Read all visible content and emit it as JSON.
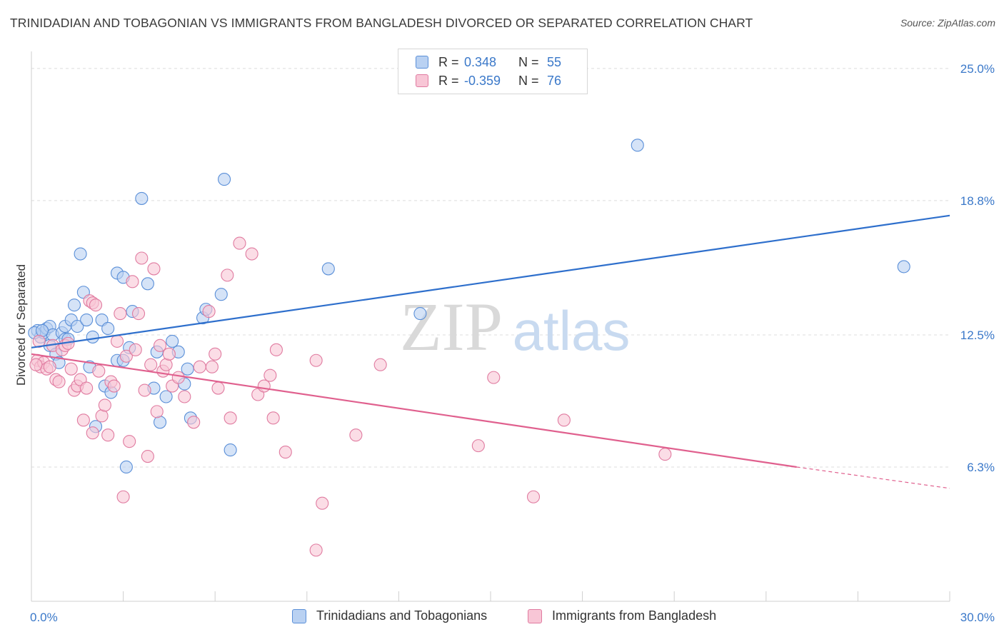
{
  "header": {
    "title": "TRINIDADIAN AND TOBAGONIAN VS IMMIGRANTS FROM BANGLADESH DIVORCED OR SEPARATED CORRELATION CHART",
    "source": "Source: ZipAtlas.com"
  },
  "watermark": {
    "zip": "ZIP",
    "atlas": "atlas"
  },
  "legend": {
    "rows": [
      {
        "r_label": "R =",
        "r_value": "0.348",
        "n_label": "N =",
        "n_value": "55",
        "color": "#5a8fd8",
        "fill": "#b9d1f2"
      },
      {
        "r_label": "R =",
        "r_value": "-0.359",
        "n_label": "N =",
        "n_value": "76",
        "color": "#e07ba0",
        "fill": "#f8c6d6"
      }
    ]
  },
  "bottom_legend": {
    "items": [
      {
        "label": "Trinidadians and Tobagonians",
        "color": "#5a8fd8",
        "fill": "#b9d1f2"
      },
      {
        "label": "Immigrants from Bangladesh",
        "color": "#e07ba0",
        "fill": "#f8c6d6"
      }
    ]
  },
  "chart_data": {
    "type": "scatter",
    "title": "TRINIDADIAN AND TOBAGONIAN VS IMMIGRANTS FROM BANGLADESH DIVORCED OR SEPARATED CORRELATION CHART",
    "xlabel": "",
    "ylabel": "Divorced or Separated",
    "xlim": [
      0,
      30
    ],
    "ylim": [
      0,
      25.8
    ],
    "x_ticks": [
      {
        "value": 0,
        "label": "0.0%"
      },
      {
        "value": 30,
        "label": "30.0%"
      }
    ],
    "y_ticks": [
      {
        "value": 6.3,
        "label": "6.3%"
      },
      {
        "value": 12.5,
        "label": "12.5%"
      },
      {
        "value": 18.8,
        "label": "18.8%"
      },
      {
        "value": 25.0,
        "label": "25.0%"
      }
    ],
    "grid": true,
    "legend_position": "top-center",
    "series": [
      {
        "name": "Trinidadians and Tobagonians",
        "color": "#5a8fd8",
        "fill": "#b9d1f2",
        "points": [
          [
            0.2,
            12.7
          ],
          [
            0.3,
            12.4
          ],
          [
            0.4,
            12.6
          ],
          [
            0.5,
            12.8
          ],
          [
            0.6,
            12.9
          ],
          [
            0.6,
            12.0
          ],
          [
            0.7,
            12.5
          ],
          [
            0.8,
            11.6
          ],
          [
            0.9,
            11.2
          ],
          [
            1.0,
            12.6
          ],
          [
            1.1,
            12.3
          ],
          [
            1.1,
            12.9
          ],
          [
            1.2,
            12.3
          ],
          [
            1.3,
            13.2
          ],
          [
            1.4,
            13.9
          ],
          [
            1.5,
            12.9
          ],
          [
            1.6,
            16.3
          ],
          [
            1.7,
            14.5
          ],
          [
            1.8,
            13.2
          ],
          [
            1.9,
            11.0
          ],
          [
            2.0,
            12.4
          ],
          [
            2.1,
            8.2
          ],
          [
            2.3,
            13.2
          ],
          [
            2.4,
            10.1
          ],
          [
            2.5,
            12.8
          ],
          [
            2.6,
            9.8
          ],
          [
            2.8,
            15.4
          ],
          [
            2.8,
            11.3
          ],
          [
            3.0,
            11.3
          ],
          [
            3.0,
            15.2
          ],
          [
            3.1,
            6.3
          ],
          [
            3.2,
            11.9
          ],
          [
            3.3,
            13.6
          ],
          [
            3.6,
            18.9
          ],
          [
            3.8,
            14.9
          ],
          [
            4.0,
            10.0
          ],
          [
            4.1,
            11.7
          ],
          [
            4.2,
            8.4
          ],
          [
            4.4,
            9.6
          ],
          [
            4.6,
            12.2
          ],
          [
            4.8,
            11.7
          ],
          [
            5.0,
            10.2
          ],
          [
            5.1,
            10.9
          ],
          [
            5.2,
            8.6
          ],
          [
            5.6,
            13.3
          ],
          [
            5.7,
            13.7
          ],
          [
            6.2,
            14.4
          ],
          [
            6.3,
            19.8
          ],
          [
            6.5,
            7.1
          ],
          [
            9.7,
            15.6
          ],
          [
            12.7,
            13.5
          ],
          [
            19.8,
            21.4
          ],
          [
            28.5,
            15.7
          ],
          [
            0.1,
            12.6
          ],
          [
            0.35,
            12.7
          ]
        ]
      },
      {
        "name": "Immigrants from Bangladesh",
        "color": "#e07ba0",
        "fill": "#f8c6d6",
        "points": [
          [
            0.2,
            11.3
          ],
          [
            0.3,
            11.0
          ],
          [
            0.4,
            11.2
          ],
          [
            0.5,
            10.9
          ],
          [
            0.6,
            11.0
          ],
          [
            0.7,
            12.0
          ],
          [
            0.8,
            10.4
          ],
          [
            0.9,
            10.3
          ],
          [
            1.0,
            11.8
          ],
          [
            1.1,
            12.0
          ],
          [
            1.2,
            12.1
          ],
          [
            1.3,
            10.9
          ],
          [
            1.4,
            9.9
          ],
          [
            1.5,
            10.1
          ],
          [
            1.6,
            10.4
          ],
          [
            1.7,
            8.5
          ],
          [
            1.8,
            10.0
          ],
          [
            1.9,
            14.1
          ],
          [
            2.0,
            14.0
          ],
          [
            2.1,
            13.9
          ],
          [
            2.2,
            10.8
          ],
          [
            2.3,
            8.7
          ],
          [
            2.4,
            9.2
          ],
          [
            2.5,
            7.8
          ],
          [
            2.6,
            10.3
          ],
          [
            2.7,
            10.1
          ],
          [
            2.8,
            12.2
          ],
          [
            2.9,
            13.5
          ],
          [
            3.0,
            4.9
          ],
          [
            3.1,
            11.5
          ],
          [
            3.2,
            7.5
          ],
          [
            3.3,
            15.0
          ],
          [
            3.4,
            11.8
          ],
          [
            3.5,
            13.5
          ],
          [
            3.6,
            16.1
          ],
          [
            3.7,
            9.9
          ],
          [
            3.8,
            6.8
          ],
          [
            3.9,
            11.1
          ],
          [
            4.0,
            15.6
          ],
          [
            4.1,
            8.9
          ],
          [
            4.2,
            12.0
          ],
          [
            4.3,
            10.8
          ],
          [
            4.4,
            11.1
          ],
          [
            4.5,
            11.6
          ],
          [
            4.6,
            10.1
          ],
          [
            4.8,
            10.5
          ],
          [
            5.0,
            9.6
          ],
          [
            5.3,
            8.4
          ],
          [
            5.5,
            11.0
          ],
          [
            5.8,
            13.6
          ],
          [
            5.9,
            11.0
          ],
          [
            6.0,
            11.6
          ],
          [
            6.1,
            10.0
          ],
          [
            6.4,
            15.3
          ],
          [
            6.5,
            8.6
          ],
          [
            6.8,
            16.8
          ],
          [
            7.2,
            16.3
          ],
          [
            7.4,
            9.7
          ],
          [
            7.6,
            10.1
          ],
          [
            7.8,
            10.6
          ],
          [
            7.9,
            8.6
          ],
          [
            8.0,
            11.8
          ],
          [
            8.3,
            7.0
          ],
          [
            9.3,
            11.3
          ],
          [
            9.5,
            4.6
          ],
          [
            9.3,
            2.4
          ],
          [
            10.6,
            7.8
          ],
          [
            11.4,
            11.1
          ],
          [
            14.6,
            7.3
          ],
          [
            15.1,
            10.5
          ],
          [
            16.4,
            4.9
          ],
          [
            17.4,
            8.5
          ],
          [
            20.7,
            6.9
          ],
          [
            0.15,
            11.1
          ],
          [
            0.25,
            12.2
          ],
          [
            2.0,
            7.9
          ]
        ]
      }
    ],
    "trendlines": [
      {
        "series": "Trinidadians and Tobagonians",
        "x": [
          0,
          30
        ],
        "y": [
          11.9,
          18.1
        ]
      },
      {
        "series": "Immigrants from Bangladesh",
        "x": [
          0,
          25.0
        ],
        "y": [
          11.6,
          6.3
        ],
        "dashed_extension": {
          "x": [
            25.0,
            30
          ],
          "y": [
            6.3,
            5.3
          ]
        }
      }
    ]
  }
}
